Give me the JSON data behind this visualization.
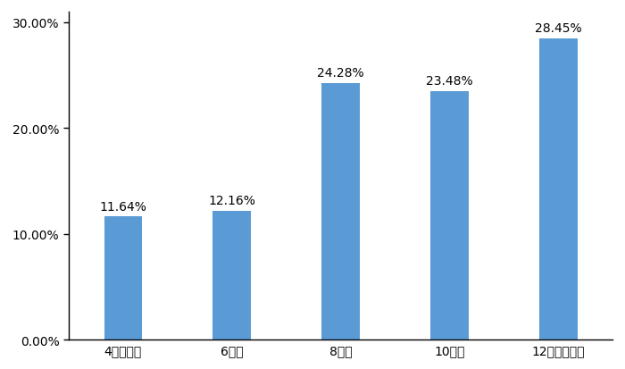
{
  "categories": [
    "4小时以内",
    "6小时",
    "8小时",
    "10小时",
    "12小时及以上"
  ],
  "values": [
    11.64,
    12.16,
    24.28,
    23.48,
    28.45
  ],
  "bar_color": "#5B9BD5",
  "ylim": [
    0,
    31
  ],
  "yticks": [
    0,
    10,
    20,
    30
  ],
  "ytick_labels": [
    "0.00%",
    "10.00%",
    "20.00%",
    "30.00%"
  ],
  "background_color": "#ffffff",
  "bar_width": 0.35,
  "label_fontsize": 10,
  "tick_fontsize": 10
}
